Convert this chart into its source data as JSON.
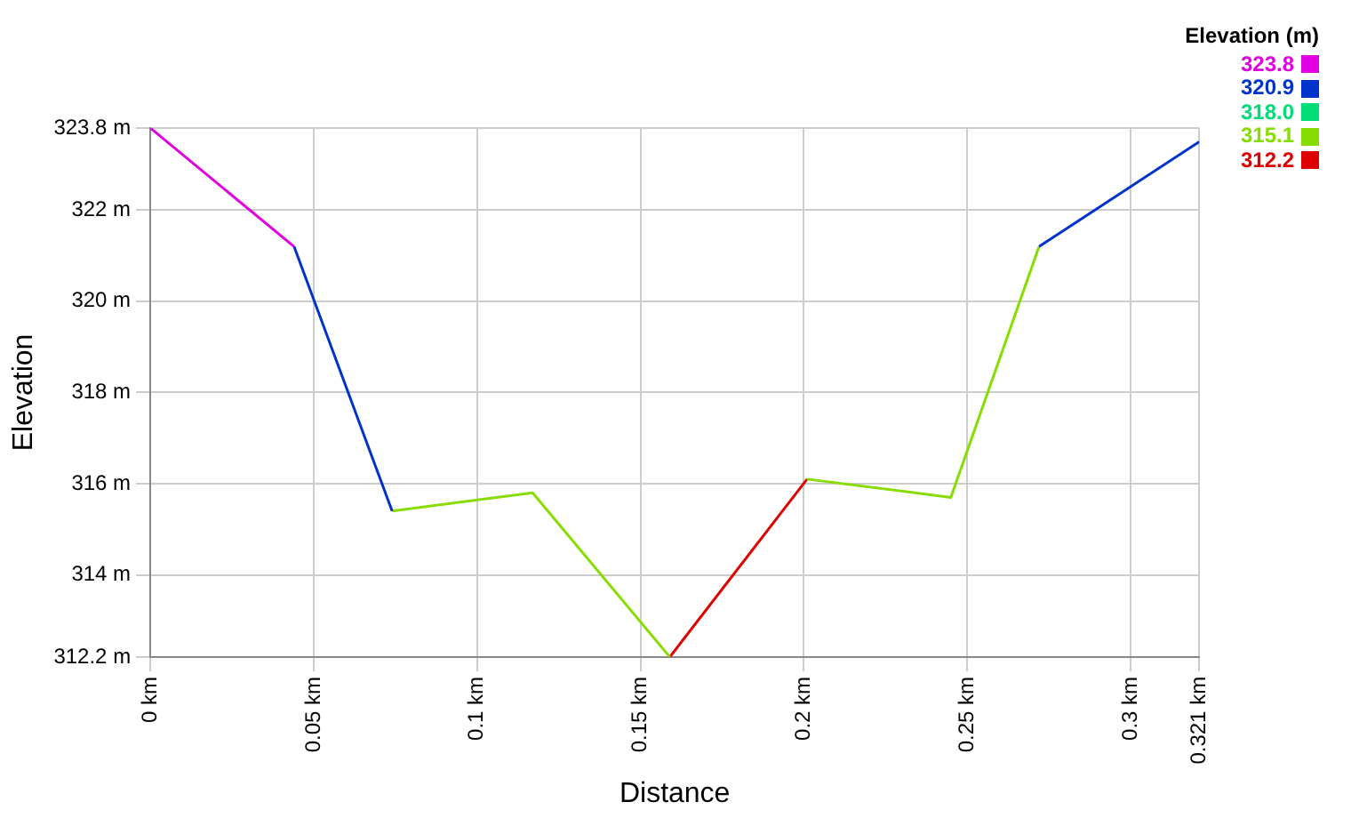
{
  "chart_data": {
    "type": "line",
    "xlabel": "Distance",
    "ylabel": "Elevation",
    "legend_title": "Elevation (m)",
    "legend": "top right",
    "grid": true,
    "marker": "none",
    "line_style": "solid",
    "xlim": [
      0,
      0.321
    ],
    "xticks": [
      {
        "value": 0,
        "label": "0 km"
      },
      {
        "value": 0.05,
        "label": "0.05 km"
      },
      {
        "value": 0.1,
        "label": "0.1 km"
      },
      {
        "value": 0.15,
        "label": "0.15 km"
      },
      {
        "value": 0.2,
        "label": "0.2 km"
      },
      {
        "value": 0.25,
        "label": "0.25 km"
      },
      {
        "value": 0.3,
        "label": "0.3 km"
      },
      {
        "value": 0.321,
        "label": "0.321 km"
      }
    ],
    "ylim": [
      312.2,
      323.8
    ],
    "yticks": [
      {
        "value": 312.2,
        "label": "312.2 m"
      },
      {
        "value": 314,
        "label": "314 m"
      },
      {
        "value": 316,
        "label": "316 m"
      },
      {
        "value": 318,
        "label": "318 m"
      },
      {
        "value": 320,
        "label": "320 m"
      },
      {
        "value": 322,
        "label": "322 m"
      },
      {
        "value": 323.8,
        "label": "323.8 m"
      }
    ],
    "series": [
      {
        "name": "323.8",
        "color": "#e000e0",
        "x": [
          0,
          0.044
        ],
        "values": [
          323.8,
          321.2
        ]
      },
      {
        "name": "320.9",
        "color": "#0033cc",
        "x": [
          0.044,
          0.074,
          0.2,
          0.272,
          0.321
        ],
        "values": [
          321.2,
          315.4,
          null,
          321.2,
          323.5
        ]
      },
      {
        "name": "318.0",
        "color": "#00dd77"
      },
      {
        "name": "315.1",
        "color": "#88dd00",
        "x": [
          0.074,
          0.117,
          0.159,
          0.18,
          0.201,
          0.245,
          0.272
        ],
        "values": [
          315.4,
          315.8,
          312.2,
          null,
          316.1,
          315.7,
          321.2
        ]
      },
      {
        "name": "312.2",
        "color": "#dd0000",
        "x": [
          0.159,
          0.201
        ],
        "values": [
          312.2,
          316.1
        ]
      }
    ]
  }
}
